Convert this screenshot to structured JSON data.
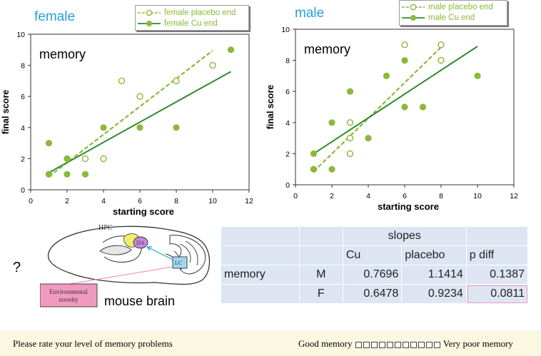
{
  "chart_data": [
    {
      "type": "scatter",
      "title": "female",
      "annotation": "memory",
      "xlabel": "starting score",
      "ylabel": "final score",
      "xlim": [
        0,
        12
      ],
      "ylim": [
        0,
        10
      ],
      "xticks": [
        0,
        2,
        4,
        6,
        8,
        10,
        12
      ],
      "yticks": [
        0,
        2,
        4,
        6,
        8,
        10
      ],
      "legend_position": "top-right",
      "series": [
        {
          "name": "female placebo end",
          "marker": "open-circle",
          "line": "dashed",
          "color": "#8db83a",
          "points": [
            [
              1,
              1
            ],
            [
              2,
              2
            ],
            [
              3,
              2
            ],
            [
              4,
              2
            ],
            [
              5,
              7
            ],
            [
              6,
              6
            ],
            [
              8,
              7
            ],
            [
              10,
              8
            ]
          ],
          "fit": [
            [
              1,
              0.85
            ],
            [
              10,
              8.95
            ]
          ]
        },
        {
          "name": "female Cu end",
          "marker": "filled-circle",
          "line": "solid",
          "color": "#8db83a",
          "fit_color": "#2e8b2e",
          "points": [
            [
              1,
              1
            ],
            [
              1,
              3
            ],
            [
              2,
              1
            ],
            [
              2,
              2
            ],
            [
              3,
              1
            ],
            [
              4,
              4
            ],
            [
              6,
              4
            ],
            [
              8,
              4
            ],
            [
              11,
              9
            ]
          ],
          "fit": [
            [
              1,
              1.1
            ],
            [
              11,
              7.6
            ]
          ]
        }
      ]
    },
    {
      "type": "scatter",
      "title": "male",
      "annotation": "memory",
      "xlabel": "starting score",
      "ylabel": "final score",
      "xlim": [
        0,
        12
      ],
      "ylim": [
        0,
        10
      ],
      "xticks": [
        0,
        2,
        4,
        6,
        8,
        10,
        12
      ],
      "yticks": [
        0,
        2,
        4,
        6,
        8,
        10
      ],
      "legend_position": "top-right",
      "series": [
        {
          "name": "male placebo end",
          "marker": "open-circle",
          "line": "dashed",
          "color": "#8db83a",
          "points": [
            [
              1,
              1
            ],
            [
              3,
              2
            ],
            [
              3,
              3
            ],
            [
              3,
              4
            ],
            [
              6,
              9
            ],
            [
              8,
              8
            ],
            [
              8,
              9
            ]
          ],
          "fit": [
            [
              1,
              0.85
            ],
            [
              8,
              8.85
            ]
          ]
        },
        {
          "name": "male Cu end",
          "marker": "filled-circle",
          "line": "solid",
          "color": "#8db83a",
          "fit_color": "#2e8b2e",
          "points": [
            [
              1,
              1
            ],
            [
              1,
              2
            ],
            [
              2,
              1
            ],
            [
              2,
              4
            ],
            [
              3,
              6
            ],
            [
              4,
              3
            ],
            [
              5,
              7
            ],
            [
              6,
              5
            ],
            [
              6,
              8
            ],
            [
              7,
              5
            ],
            [
              10,
              7
            ]
          ],
          "fit": [
            [
              1,
              2.0
            ],
            [
              10,
              8.9
            ]
          ]
        }
      ]
    }
  ],
  "brain": {
    "label": "mouse brain",
    "hpc": "HPC",
    "da": "DA",
    "lc": "LC",
    "env_line1": "Environmental",
    "env_line2": "novelty"
  },
  "question_mark": "?",
  "slopes_table": {
    "header": "slopes",
    "col_cu": "Cu",
    "col_placebo": "placebo",
    "col_pdiff": "p diff",
    "row_label": "memory",
    "rows": [
      {
        "sex": "M",
        "cu": "0.7696",
        "placebo": "1.1414",
        "pdiff": "0.1387"
      },
      {
        "sex": "F",
        "cu": "0.6478",
        "placebo": "0.9234",
        "pdiff": "0.0811"
      }
    ]
  },
  "survey": {
    "question": "Please rate your level of memory problems",
    "left": "Good memory",
    "right": "Very poor memory"
  }
}
